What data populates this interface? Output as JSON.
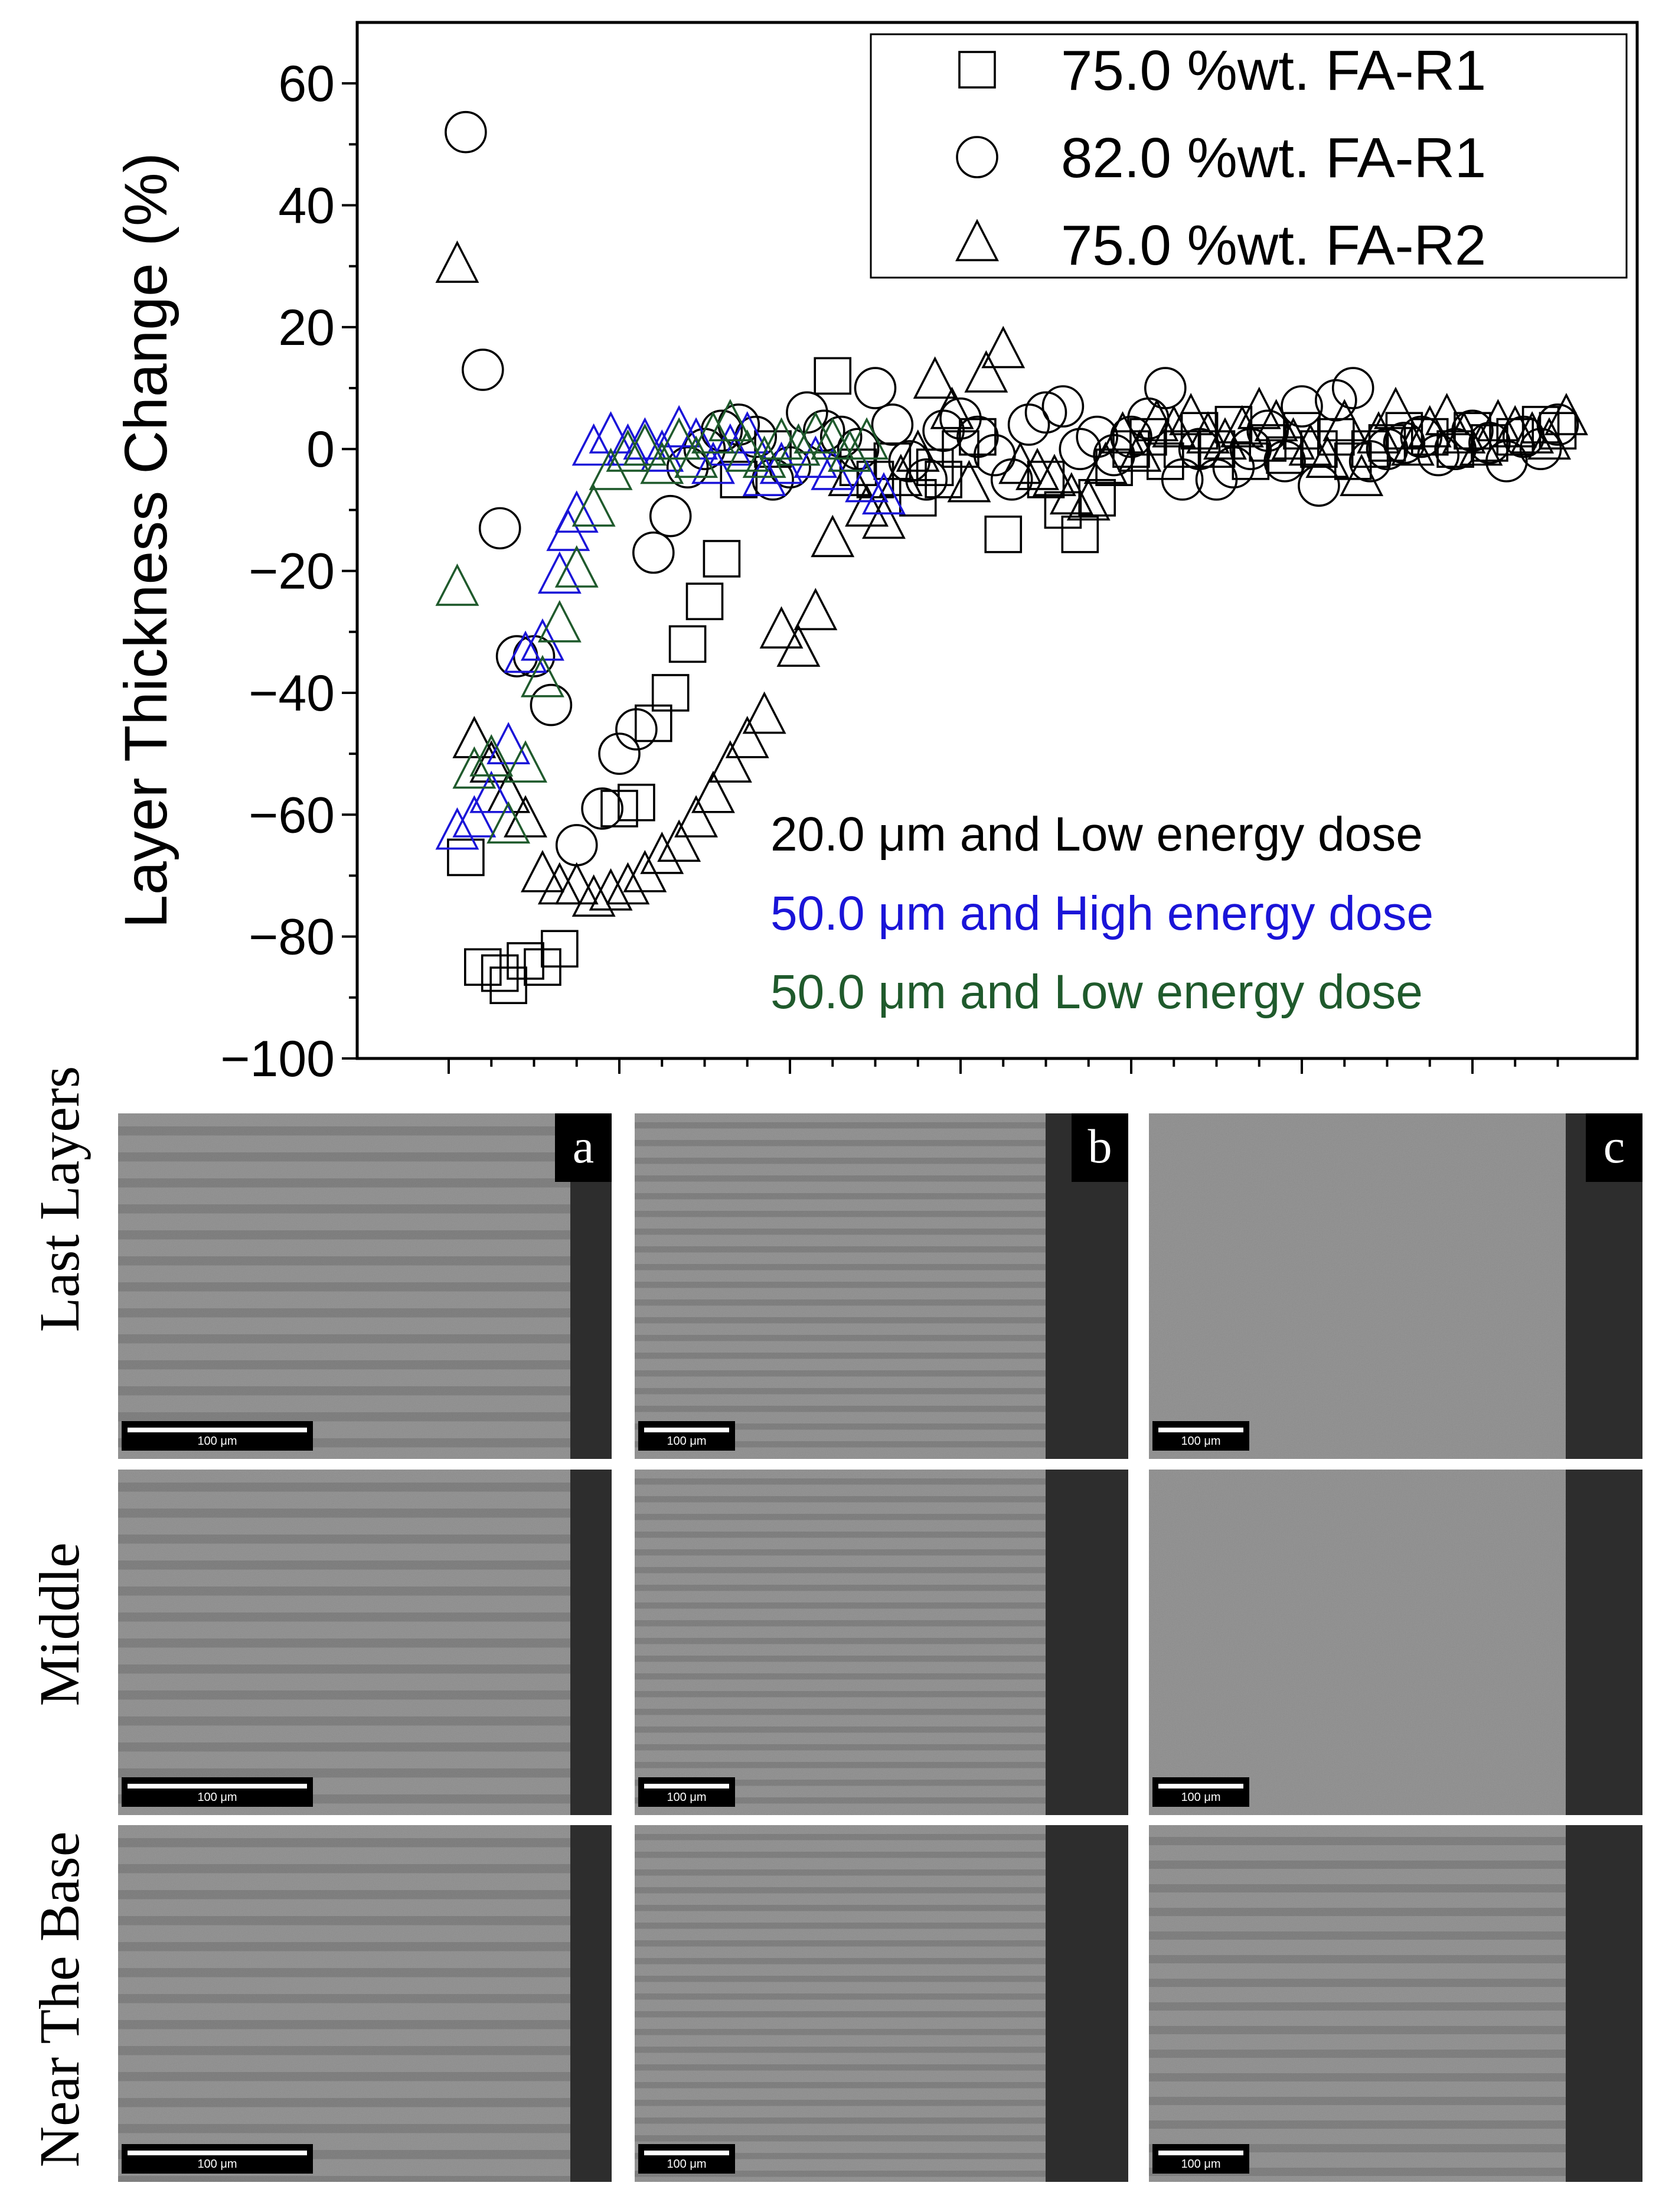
{
  "chart_data": {
    "type": "scatter",
    "title": "",
    "xlabel": "",
    "ylabel": "Layer Thickness Change (%)",
    "ylim": [
      -100,
      70
    ],
    "xlim": [
      -5,
      140
    ],
    "yticks": [
      "60",
      "40",
      "20",
      "0",
      "−20",
      "−40",
      "−60",
      "−80",
      "−100"
    ],
    "ytick_values": [
      60,
      40,
      20,
      0,
      -20,
      -40,
      -60,
      -80,
      -100
    ],
    "xticks_major": [
      0,
      20,
      40,
      60,
      80,
      100,
      120
    ],
    "xticks_minor": [
      5,
      10,
      15,
      25,
      30,
      35,
      45,
      50,
      55,
      65,
      70,
      75,
      85,
      90,
      95,
      105,
      110,
      115,
      125,
      130
    ],
    "legend": [
      {
        "label": "75.0 %wt. FA-R1",
        "marker": "square"
      },
      {
        "label": "82.0 %wt. FA-R1",
        "marker": "circle"
      },
      {
        "label": "75.0 %wt. FA-R2",
        "marker": "triangle"
      }
    ],
    "annotations": [
      {
        "text": "20.0 μm and Low energy dose",
        "color": "#000000"
      },
      {
        "text": "50.0 μm and High energy dose",
        "color": "#1a14d8"
      },
      {
        "text": "50.0 μm and Low energy dose",
        "color": "#1f5a2c"
      }
    ],
    "series": [
      {
        "name": "75.0 %wt. FA-R1",
        "marker": "square",
        "color": "#000000",
        "x": [
          2,
          4,
          6,
          7,
          9,
          11,
          13,
          20,
          22,
          24,
          26,
          28,
          30,
          32,
          34,
          38,
          45,
          48,
          50,
          52,
          55,
          57,
          58,
          60,
          62,
          65,
          70,
          72,
          74,
          76,
          78,
          80,
          82,
          84,
          86,
          88,
          90,
          92,
          94,
          96,
          98,
          100,
          102,
          104,
          106,
          108,
          110,
          112,
          115,
          118,
          120,
          122,
          125,
          128,
          130
        ],
        "y": [
          -67,
          -85,
          -86,
          -88,
          -84,
          -85,
          -82,
          -59,
          -58,
          -45,
          -40,
          -32,
          -25,
          -18,
          -5,
          0,
          12,
          -3,
          -5,
          -2,
          -8,
          -3,
          -5,
          0,
          2,
          -14,
          -5,
          -10,
          -14,
          -8,
          -3,
          0,
          2,
          -2,
          0,
          3,
          0,
          4,
          -2,
          1,
          -1,
          3,
          0,
          2,
          -2,
          0,
          1,
          3,
          2,
          0,
          3,
          1,
          2,
          4,
          3
        ]
      },
      {
        "name": "82.0 %wt. FA-R1",
        "marker": "circle",
        "color": "#000000",
        "x": [
          2,
          4,
          6,
          8,
          10,
          12,
          15,
          18,
          20,
          22,
          24,
          26,
          28,
          30,
          32,
          34,
          36,
          38,
          40,
          42,
          44,
          46,
          48,
          50,
          52,
          54,
          56,
          58,
          60,
          62,
          64,
          66,
          68,
          70,
          72,
          74,
          76,
          78,
          80,
          82,
          84,
          86,
          88,
          90,
          92,
          94,
          96,
          98,
          100,
          102,
          104,
          106,
          108,
          110,
          112,
          114,
          116,
          118,
          120,
          122,
          124,
          126,
          128,
          130
        ],
        "y": [
          52,
          13,
          -13,
          -34,
          -34,
          -42,
          -65,
          -59,
          -50,
          -46,
          -17,
          -11,
          -3,
          0,
          3,
          4,
          2,
          -5,
          -3,
          6,
          3,
          2,
          0,
          10,
          4,
          -2,
          -5,
          3,
          5,
          2,
          -1,
          -5,
          4,
          6,
          7,
          0,
          2,
          -1,
          2,
          5,
          10,
          -5,
          0,
          -5,
          -3,
          0,
          3,
          -2,
          7,
          -6,
          8,
          10,
          -2,
          0,
          1,
          2,
          -1,
          0,
          3,
          1,
          -2,
          2,
          0,
          4
        ]
      },
      {
        "name": "75.0 %wt. FA-R2",
        "marker": "triangle",
        "color": "#000000",
        "x": [
          1,
          3,
          5,
          7,
          9,
          11,
          13,
          15,
          17,
          19,
          21,
          23,
          25,
          27,
          29,
          31,
          33,
          35,
          37,
          39,
          41,
          43,
          45,
          47,
          49,
          51,
          53,
          55,
          57,
          59,
          61,
          63,
          65,
          67,
          69,
          71,
          73,
          75,
          77,
          79,
          81,
          83,
          85,
          87,
          89,
          91,
          93,
          95,
          97,
          99,
          101,
          103,
          105,
          107,
          109,
          111,
          113,
          115,
          117,
          119,
          121,
          123,
          125,
          127,
          129,
          131
        ],
        "y": [
          30,
          -48,
          -52,
          -57,
          -61,
          -70,
          -72,
          -72,
          -74,
          -73,
          -72,
          -70,
          -67,
          -65,
          -61,
          -57,
          -52,
          -48,
          -44,
          -30,
          -33,
          -27,
          -15,
          -5,
          -10,
          -12,
          -5,
          -1,
          11,
          6,
          -6,
          12,
          16,
          -3,
          -4,
          -5,
          -8,
          -9,
          -3,
          2,
          -1,
          4,
          3,
          5,
          2,
          1,
          3,
          6,
          4,
          1,
          0,
          -2,
          4,
          -5,
          2,
          6,
          0,
          3,
          5,
          2,
          0,
          4,
          3,
          2,
          1,
          5
        ]
      },
      {
        "name": "50.0 μm and High energy dose",
        "marker": "triangle",
        "color": "#1a14d8",
        "x": [
          1,
          3,
          5,
          7,
          9,
          11,
          13,
          14,
          15,
          17,
          19,
          21,
          23,
          25,
          27,
          29,
          31,
          33,
          35,
          37,
          39,
          41,
          43,
          45,
          47,
          49,
          51
        ],
        "y": [
          -63,
          -61,
          -57,
          -49,
          -34,
          -32,
          -21,
          -14,
          -11,
          0,
          2,
          0,
          1,
          -1,
          3,
          1,
          -3,
          0,
          2,
          -5,
          -3,
          0,
          -2,
          -4,
          -1,
          -6,
          -8
        ]
      },
      {
        "name": "50.0 μm and Low energy dose",
        "marker": "triangle",
        "color": "#1f5a2c",
        "x": [
          1,
          3,
          5,
          7,
          9,
          11,
          13,
          15,
          17,
          19,
          21,
          23,
          25,
          27,
          29,
          31,
          33,
          35,
          37,
          39,
          41,
          43,
          45,
          47,
          49
        ],
        "y": [
          -23,
          -53,
          -51,
          -62,
          -52,
          -38,
          -29,
          -20,
          -10,
          -4,
          -1,
          0,
          -3,
          1,
          -2,
          2,
          4,
          -1,
          -2,
          1,
          0,
          2,
          1,
          -1,
          1
        ]
      }
    ]
  },
  "micrographs": {
    "row_labels": [
      "Last Layers",
      "Middle",
      "Near The Base"
    ],
    "column_tags": [
      "a",
      "b",
      "c"
    ],
    "scale_label": "100 μm"
  }
}
